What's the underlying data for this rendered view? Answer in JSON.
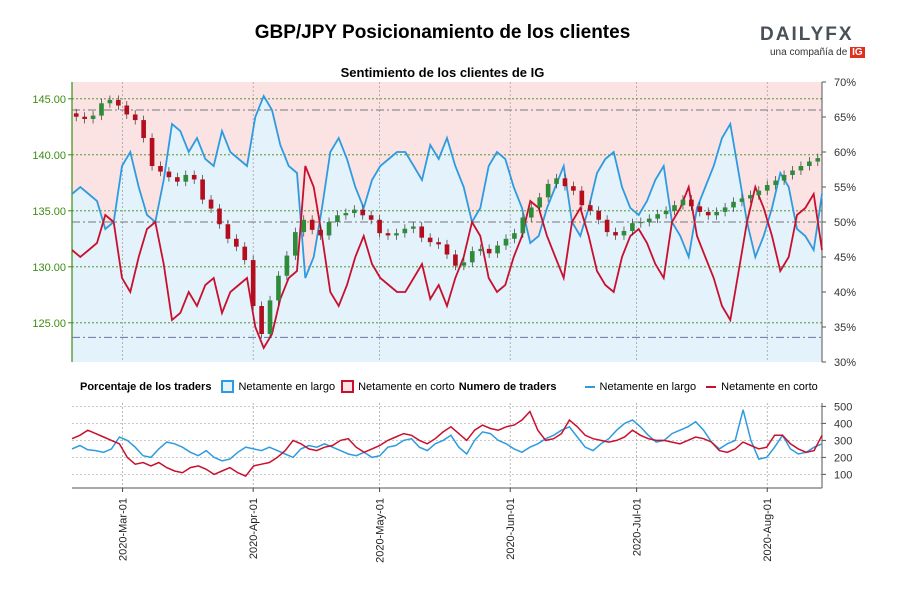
{
  "header": {
    "title": "GBP/JPY Posicionamiento de los clientes",
    "logo_text": "DAILYFX",
    "logo_sub": "una compañía de",
    "logo_ig": "IG"
  },
  "legend": {
    "pct_title": "Porcentaje de los traders",
    "pct_long": "Netamente en largo",
    "pct_short": "Netamente en corto",
    "num_title": "Numero de traders",
    "num_long": "Netamente en largo",
    "num_short": "Netamente en corto"
  },
  "colors": {
    "long": "#2e9be0",
    "short": "#c8102e",
    "long_fill": "#e3f2fb",
    "short_fill": "#fbe3e4",
    "up": "#2e8b3a",
    "down": "#b30d1e",
    "axis_left": "#3d8c14"
  },
  "chart_data": [
    {
      "type": "line",
      "title": "Sentimiento de los clientes de IG",
      "x_range": [
        "2020-02-18",
        "2020-08-14"
      ],
      "x_ticks": [
        "2020-Mar-01",
        "2020-Apr-01",
        "2020-May-01",
        "2020-Jun-01",
        "2020-Jul-01",
        "2020-Aug-01"
      ],
      "price": {
        "name": "GBP/JPY",
        "ylim": [
          121.5,
          146.5
        ],
        "ticks": [
          "125.00",
          "130.00",
          "135.00",
          "140.00",
          "145.00"
        ],
        "reference_lines": [
          145.0,
          134.0,
          123.7
        ],
        "values": [
          143.4,
          143.2,
          143.5,
          144.6,
          144.9,
          144.4,
          143.6,
          143.1,
          141.5,
          139.0,
          138.5,
          138.0,
          137.6,
          138.2,
          137.8,
          136.0,
          135.2,
          133.8,
          132.5,
          131.8,
          130.6,
          126.5,
          124.0,
          127.0,
          129.2,
          131.0,
          133.1,
          134.2,
          133.3,
          132.8,
          134.0,
          134.6,
          134.8,
          135.1,
          134.6,
          134.2,
          133.0,
          132.8,
          133.0,
          133.4,
          133.6,
          132.6,
          132.2,
          132.0,
          131.1,
          130.1,
          130.4,
          131.4,
          131.6,
          131.2,
          131.9,
          132.5,
          133.0,
          134.4,
          135.3,
          136.2,
          137.4,
          137.9,
          137.2,
          136.8,
          135.5,
          135.0,
          134.2,
          133.1,
          132.8,
          133.2,
          133.9,
          134.0,
          134.3,
          134.7,
          135.0,
          135.5,
          136.0,
          135.4,
          134.9,
          134.6,
          134.9,
          135.3,
          135.8,
          136.1,
          136.4,
          136.8,
          137.3,
          137.7,
          138.2,
          138.6,
          139.0,
          139.4,
          139.7
        ],
        "ohlc_tail": []
      },
      "sentiment": {
        "ylim": [
          30,
          70
        ],
        "ticks": [
          "30%",
          "35%",
          "40%",
          "45%",
          "50%",
          "55%",
          "60%",
          "65%",
          "70%"
        ],
        "reference_lines": [
          66.0,
          50.0
        ],
        "long_pct": [
          54,
          55,
          54,
          53,
          49,
          50,
          58,
          60,
          55,
          51,
          50,
          56,
          64,
          63,
          60,
          62,
          59,
          58,
          63,
          60,
          59,
          58,
          65,
          68,
          66,
          61,
          58,
          57,
          42,
          45,
          52,
          60,
          62,
          59,
          55,
          52,
          56,
          58,
          59,
          60,
          60,
          58,
          56,
          61,
          59,
          62,
          58,
          55,
          50,
          52,
          58,
          60,
          59,
          55,
          52,
          47,
          48,
          52,
          55,
          58,
          50,
          48,
          52,
          57,
          59,
          60,
          55,
          52,
          51,
          53,
          56,
          58,
          50,
          48,
          45,
          52,
          55,
          58,
          62,
          64,
          57,
          50,
          45,
          48,
          52,
          57,
          55,
          49,
          48,
          46,
          54
        ],
        "short_pct": [
          46,
          45,
          46,
          47,
          51,
          50,
          42,
          40,
          45,
          49,
          50,
          44,
          36,
          37,
          40,
          38,
          41,
          42,
          37,
          40,
          41,
          42,
          35,
          32,
          34,
          39,
          42,
          43,
          58,
          55,
          48,
          40,
          38,
          41,
          45,
          48,
          44,
          42,
          41,
          40,
          40,
          42,
          44,
          39,
          41,
          38,
          42,
          45,
          50,
          48,
          42,
          40,
          41,
          45,
          48,
          53,
          52,
          48,
          45,
          42,
          50,
          52,
          48,
          43,
          41,
          40,
          45,
          48,
          49,
          47,
          44,
          42,
          50,
          52,
          55,
          48,
          45,
          42,
          38,
          36,
          43,
          50,
          55,
          52,
          48,
          43,
          45,
          51,
          52,
          54,
          46
        ]
      }
    },
    {
      "type": "line",
      "title": "Numero de traders",
      "ylim": [
        20,
        520
      ],
      "ticks": [
        "100",
        "200",
        "300",
        "400",
        "500"
      ],
      "series": [
        {
          "name": "Netamente en largo",
          "values": [
            250,
            270,
            245,
            240,
            230,
            250,
            320,
            300,
            260,
            210,
            200,
            250,
            290,
            280,
            260,
            230,
            210,
            240,
            200,
            180,
            190,
            230,
            260,
            250,
            240,
            260,
            240,
            220,
            200,
            250,
            270,
            260,
            280,
            260,
            240,
            220,
            210,
            230,
            200,
            210,
            260,
            270,
            300,
            310,
            260,
            240,
            280,
            300,
            330,
            260,
            220,
            300,
            350,
            340,
            300,
            280,
            250,
            230,
            260,
            280,
            310,
            330,
            360,
            380,
            320,
            260,
            240,
            280,
            310,
            360,
            400,
            420,
            380,
            330,
            290,
            300,
            340,
            360,
            380,
            410,
            360,
            290,
            250,
            280,
            300,
            480,
            300,
            190,
            200,
            260,
            330,
            250,
            220,
            230,
            260,
            280
          ]
        },
        {
          "name": "Netamente en corto",
          "values": [
            310,
            330,
            360,
            340,
            320,
            300,
            280,
            200,
            160,
            170,
            150,
            170,
            140,
            120,
            110,
            140,
            150,
            130,
            100,
            120,
            140,
            110,
            90,
            150,
            160,
            170,
            200,
            240,
            300,
            280,
            250,
            240,
            260,
            270,
            300,
            310,
            260,
            230,
            250,
            270,
            300,
            320,
            340,
            330,
            300,
            280,
            310,
            350,
            380,
            340,
            300,
            360,
            390,
            370,
            360,
            380,
            390,
            420,
            470,
            360,
            300,
            310,
            340,
            420,
            380,
            330,
            310,
            300,
            290,
            300,
            320,
            360,
            330,
            310,
            300,
            300,
            290,
            280,
            300,
            320,
            310,
            290,
            240,
            230,
            250,
            290,
            270,
            250,
            260,
            330,
            330,
            280,
            250,
            230,
            240,
            330
          ]
        }
      ]
    }
  ]
}
